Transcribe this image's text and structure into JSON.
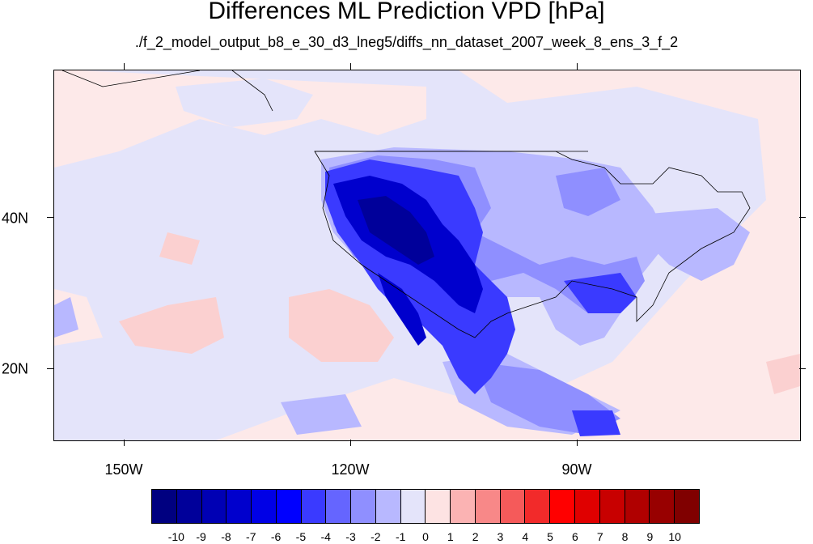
{
  "title": "Differences ML Prediction VPD [hPa]",
  "subtitle": "./f_2_model_output_b8_e_30_d3_lneg5/diffs_nn_dataset_2007_week_8_ens_3_f_2",
  "x_axis": {
    "labels": [
      "150W",
      "120W",
      "90W"
    ],
    "lon_values": [
      -150,
      -120,
      -90
    ],
    "lon_range": [
      -159,
      -60
    ]
  },
  "y_axis": {
    "labels": [
      "40N",
      "20N"
    ],
    "lat_values": [
      40,
      20
    ],
    "lat_range": [
      11,
      60
    ]
  },
  "colorbar": {
    "labels": [
      "-10",
      "-9",
      "-8",
      "-7",
      "-6",
      "-5",
      "-4",
      "-3",
      "-2",
      "-1",
      "0",
      "1",
      "2",
      "3",
      "4",
      "5",
      "6",
      "7",
      "8",
      "9",
      "10"
    ],
    "colors": [
      "#000080",
      "#00009a",
      "#0000b4",
      "#0000cd",
      "#0000e6",
      "#0000ff",
      "#3a3aff",
      "#6565ff",
      "#8f8fff",
      "#b8b8ff",
      "#e4e4fa",
      "#fde3e3",
      "#fbb3b3",
      "#f88888",
      "#f55a5a",
      "#f22a2a",
      "#ff0000",
      "#e00000",
      "#c80000",
      "#b00000",
      "#980000",
      "#800000"
    ]
  }
}
